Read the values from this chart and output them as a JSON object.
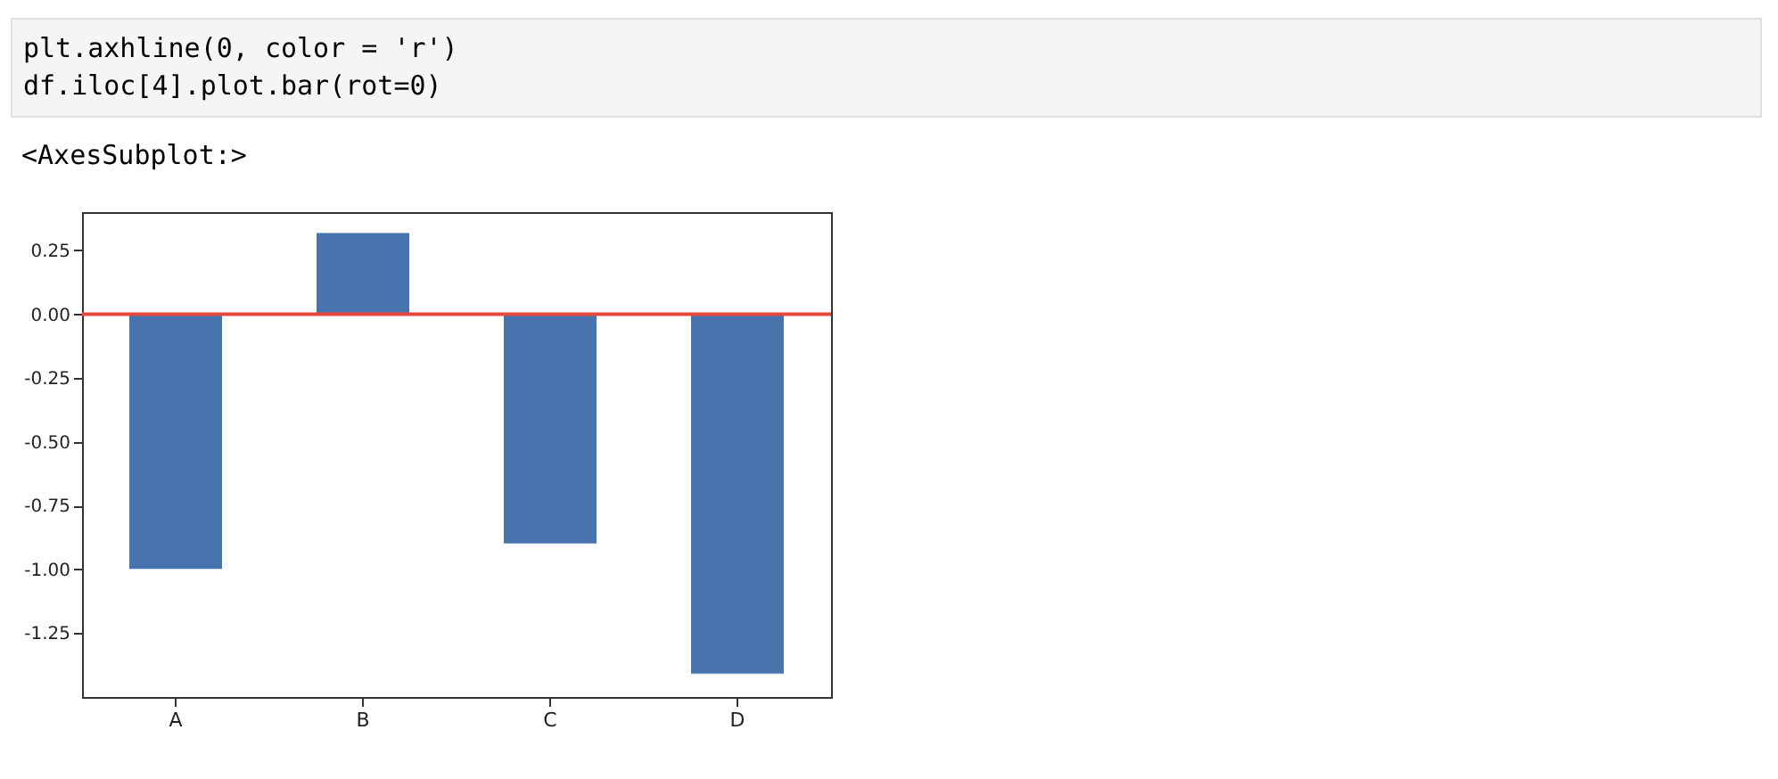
{
  "chart_data": {
    "type": "bar",
    "annotations": [
      "plt.axhline(0, color = 'r')",
      "df.iloc[4].plot.bar(rot=0)",
      "<AxesSubplot:>"
    ],
    "categories": [
      "A",
      "B",
      "C",
      "D"
    ],
    "values": [
      -1.0,
      0.32,
      -0.9,
      -1.41
    ],
    "color": "#4874ad",
    "ylim": [
      -1.5,
      0.4
    ],
    "yticks": [
      {
        "value": -1.25,
        "label": "-1.25"
      },
      {
        "value": -1.0,
        "label": "-1.00"
      },
      {
        "value": -0.75,
        "label": "-0.75"
      },
      {
        "value": -0.5,
        "label": "-0.50"
      },
      {
        "value": -0.25,
        "label": "-0.25"
      },
      {
        "value": 0,
        "label": "0.00"
      },
      {
        "value": 0.25,
        "label": "0.25"
      }
    ],
    "ref_lines": [
      {
        "axis": "y",
        "value": 0,
        "color": "#e8473d"
      }
    ],
    "grid": false
  }
}
